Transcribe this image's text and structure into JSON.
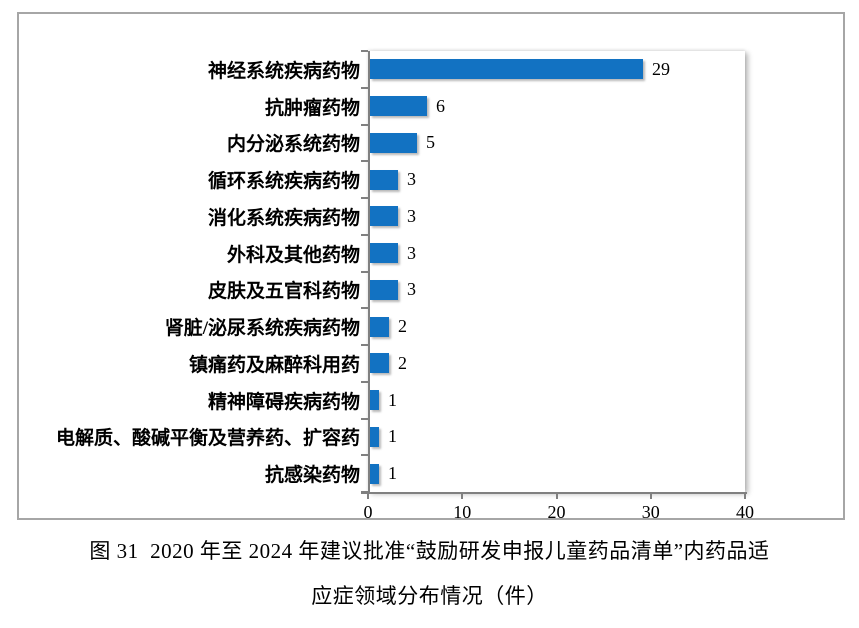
{
  "chart_data": {
    "type": "bar",
    "orientation": "horizontal",
    "categories": [
      "神经系统疾病药物",
      "抗肿瘤药物",
      "内分泌系统药物",
      "循环系统疾病药物",
      "消化系统疾病药物",
      "外科及其他药物",
      "皮肤及五官科药物",
      "肾脏/泌尿系统疾病药物",
      "镇痛药及麻醉科用药",
      "精神障碍疾病药物",
      "电解质、酸碱平衡及营养药、扩容药",
      "抗感染药物"
    ],
    "values": [
      29,
      6,
      5,
      3,
      3,
      3,
      3,
      2,
      2,
      1,
      1,
      1
    ],
    "value_labels": [
      "29",
      "6",
      "5",
      "3",
      "3",
      "3",
      "3",
      "2",
      "2",
      "1",
      "1",
      "1"
    ],
    "x_ticks": [
      0,
      10,
      20,
      30,
      40
    ],
    "xlim": [
      0,
      40
    ],
    "xlabel": "",
    "ylabel": "",
    "title": "",
    "grid": false,
    "legend": "none",
    "bar_color": "#1272c2",
    "axis_color": "#808080"
  },
  "caption": {
    "line1": "图 31  2020 年至 2024 年建议批准“鼓励研发申报儿童药品清单”内药品适",
    "line2": "应症领域分布情况（件）"
  }
}
